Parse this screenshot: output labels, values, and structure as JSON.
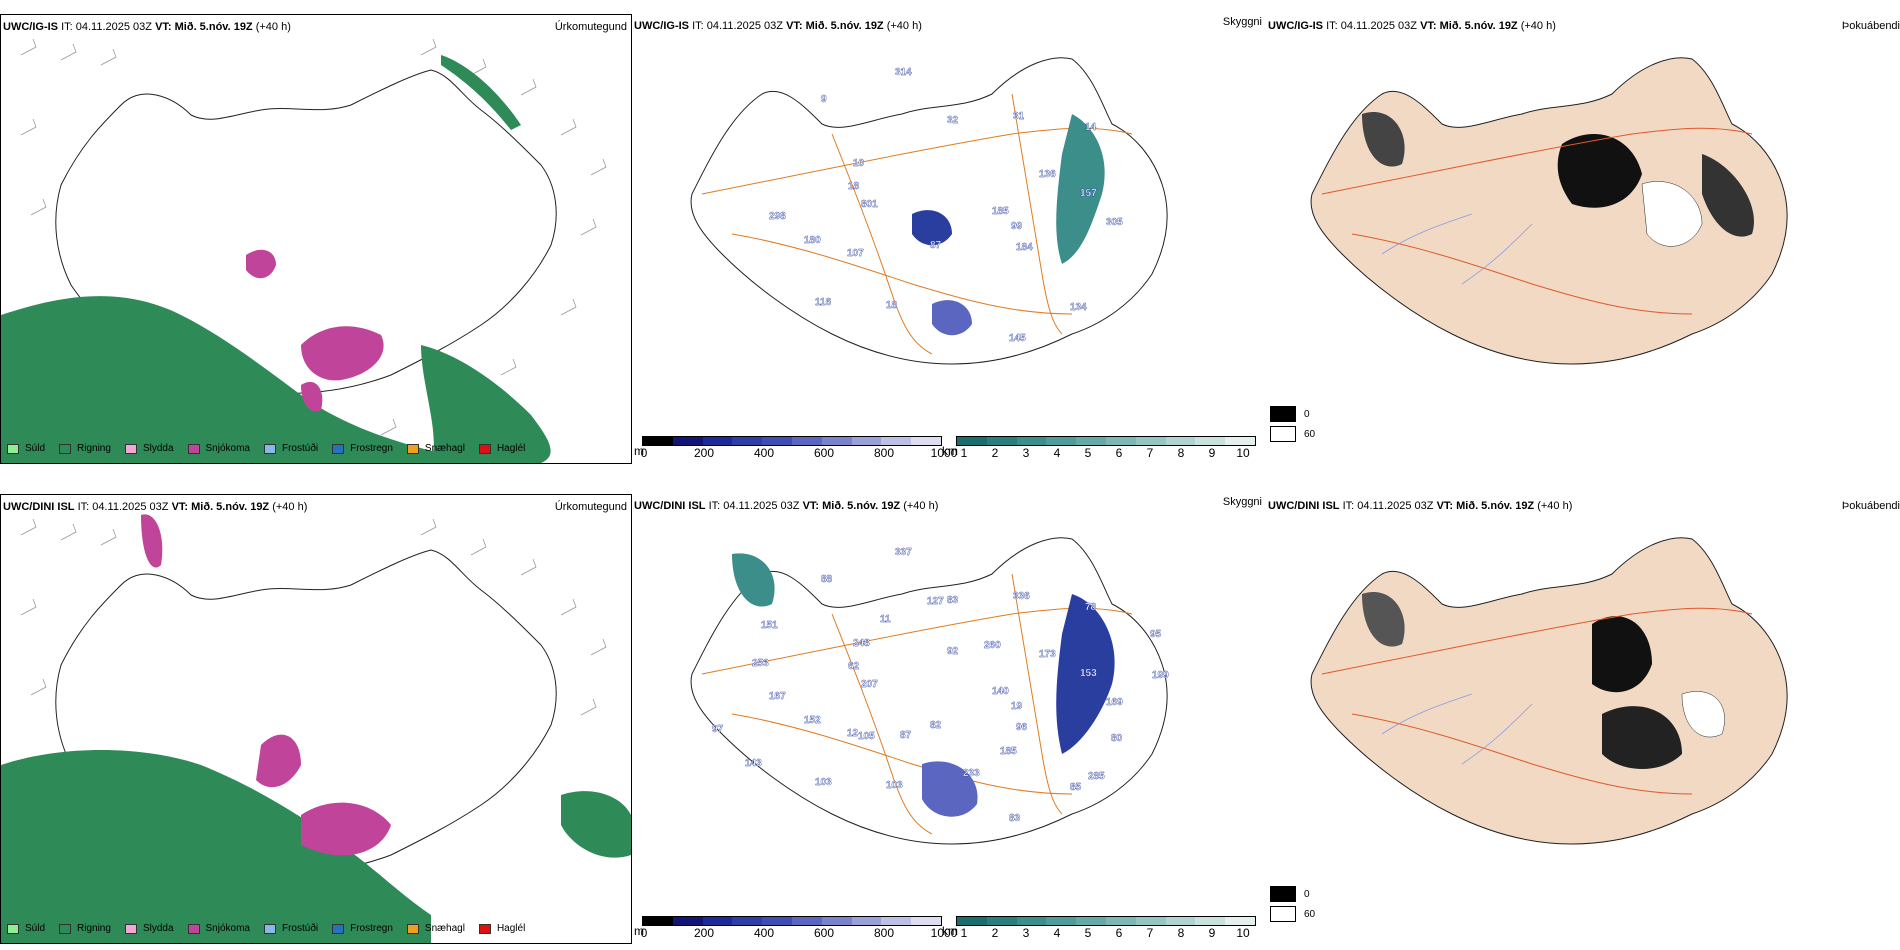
{
  "rows": [
    {
      "model": "UWC/IG-IS",
      "precip": {
        "header_model": "UWC/IG-IS",
        "header_it_label": "IT:",
        "header_it": "04.11.2025 03Z",
        "header_vt_label": "VT:",
        "header_vt": "Mið. 5.nóv. 19Z",
        "header_lead": "(+40 h)",
        "title": "Úrkomutegund"
      },
      "vis": {
        "header_model": "UWC/IG-IS",
        "header_it_label": "IT:",
        "header_it": "04.11.2025 03Z",
        "header_vt_label": "VT:",
        "header_vt": "Mið. 5.nóv. 19Z",
        "header_lead": "(+40 h)",
        "title": "Skyggni",
        "labels": [
          "185",
          "107",
          "32",
          "134",
          "801",
          "136",
          "18",
          "9",
          "99",
          "180",
          "31",
          "145",
          "18",
          "157",
          "116",
          "314",
          "184",
          "298",
          "14",
          "87",
          "10",
          "305"
        ]
      },
      "fog": {
        "header_model": "UWC/IG-IS",
        "header_it_label": "IT:",
        "header_it": "04.11.2025 03Z",
        "header_vt_label": "VT:",
        "header_vt": "Mið. 5.nóv. 19Z",
        "header_lead": "(+40 h)",
        "title": "Þokuábendi"
      }
    },
    {
      "model": "UWC/DINI ISL",
      "precip": {
        "header_model": "UWC/DINI ISL",
        "header_it_label": "IT:",
        "header_it": "04.11.2025 03Z",
        "header_vt_label": "VT:",
        "header_vt": "Mið. 5.nóv. 19Z",
        "header_lead": "(+40 h)",
        "title": "Úrkomutegund"
      },
      "vis": {
        "header_model": "UWC/DINI ISL",
        "header_it_label": "IT:",
        "header_it": "04.11.2025 03Z",
        "header_vt_label": "VT:",
        "header_vt": "Mið. 5.nóv. 19Z",
        "header_lead": "(+40 h)",
        "title": "Skyggni",
        "labels": [
          "140",
          "12",
          "83",
          "85",
          "207",
          "173",
          "103",
          "88",
          "19",
          "152",
          "336",
          "83",
          "62",
          "153",
          "103",
          "337",
          "96",
          "167",
          "78",
          "82",
          "248",
          "169",
          "143",
          "92",
          "185",
          "253",
          "95",
          "87",
          "11",
          "80",
          "97",
          "260",
          "233",
          "151",
          "199",
          "105",
          "127",
          "285"
        ]
      },
      "fog": {
        "header_model": "UWC/DINI ISL",
        "header_it_label": "IT:",
        "header_it": "04.11.2025 03Z",
        "header_vt_label": "VT:",
        "header_vt": "Mið. 5.nóv. 19Z",
        "header_lead": "(+40 h)",
        "title": "Þokuábendi"
      }
    }
  ],
  "precip_legend": [
    {
      "label": "Súld",
      "color": "#90ee90"
    },
    {
      "label": "Rigning",
      "color": "#2e8b57"
    },
    {
      "label": "Slydda",
      "color": "#f4a6d7"
    },
    {
      "label": "Snjókoma",
      "color": "#c0449a"
    },
    {
      "label": "Frostúði",
      "color": "#87b8e8"
    },
    {
      "label": "Frostregn",
      "color": "#2a6fc0"
    },
    {
      "label": "Snæhagl",
      "color": "#f0a020"
    },
    {
      "label": "Haglél",
      "color": "#e01010"
    }
  ],
  "height_bar": {
    "unit": "m",
    "ticks": [
      "0",
      "200",
      "400",
      "600",
      "800",
      "1000"
    ],
    "colors": [
      "#000000",
      "#141478",
      "#1e2a9a",
      "#2e3ea8",
      "#3e4eb4",
      "#5a66c0",
      "#7a82cc",
      "#9aa0d8",
      "#bcc0e4",
      "#dcdef0"
    ]
  },
  "vis_bar": {
    "unit": "km",
    "ticks": [
      "1",
      "2",
      "3",
      "4",
      "5",
      "6",
      "7",
      "8",
      "9",
      "10"
    ],
    "colors": [
      "#1c6e6e",
      "#2a7e7c",
      "#3c8e8a",
      "#509c98",
      "#66aaa6",
      "#7cb8b4",
      "#96c6c2",
      "#b0d4d0",
      "#cae2de",
      "#e4f0ee"
    ]
  },
  "fog_legend": [
    {
      "label": "0",
      "color": "#000000"
    },
    {
      "label": "60",
      "color": "#ffffff"
    }
  ]
}
